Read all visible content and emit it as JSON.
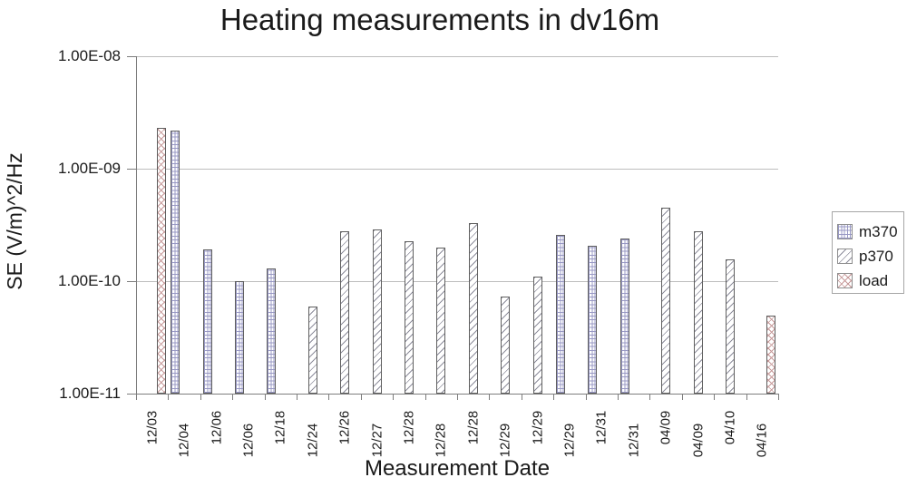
{
  "title": "Heating measurements in dv16m",
  "y_axis": {
    "label": "SE (V/m)^2/Hz",
    "tick_labels": [
      "1.00E-08",
      "1.00E-09",
      "1.00E-10",
      "1.00E-11"
    ]
  },
  "x_axis": {
    "label": "Measurement Date"
  },
  "legend": {
    "position": "right",
    "entries": [
      {
        "name": "m370",
        "pattern": "grid",
        "color": "#9898c4"
      },
      {
        "name": "p370",
        "pattern": "diag",
        "color": "#8e8e9c"
      },
      {
        "name": "load",
        "pattern": "cross",
        "color": "#c79a9a"
      }
    ]
  },
  "colors": {
    "gridline": "#bdbdbd",
    "axis": "#7d7d7d",
    "bar_border": "#5f5f5f",
    "text": "#1a1a1a",
    "m370": "#9898c4",
    "p370": "#8e8e9c",
    "load": "#c79a9a"
  },
  "chart_data": {
    "type": "bar",
    "yscale": "log",
    "title": "Heating measurements in dv16m",
    "xlabel": "Measurement Date",
    "ylabel": "SE (V/m)^2/Hz",
    "ylim": [
      1e-11,
      1e-08
    ],
    "grid": true,
    "legend_position": "right",
    "series_names": [
      "m370",
      "p370",
      "load"
    ],
    "categories": [
      "12/03",
      "12/04",
      "12/06",
      "12/06",
      "12/18",
      "12/24",
      "12/26",
      "12/27",
      "12/28",
      "12/28",
      "12/28",
      "12/29",
      "12/29",
      "12/29",
      "12/31",
      "12/31",
      "04/09",
      "04/09",
      "04/10",
      "04/16"
    ],
    "points": [
      {
        "date": "12/03",
        "series": "load",
        "value": 2.3e-09
      },
      {
        "date": "12/04",
        "series": "m370",
        "value": 2.2e-09
      },
      {
        "date": "12/06",
        "series": "m370",
        "value": 1.9e-10
      },
      {
        "date": "12/06",
        "series": "m370",
        "value": 1e-10
      },
      {
        "date": "12/18",
        "series": "m370",
        "value": 1.3e-10
      },
      {
        "date": "12/24",
        "series": "p370",
        "value": 6e-11
      },
      {
        "date": "12/26",
        "series": "p370",
        "value": 2.8e-10
      },
      {
        "date": "12/27",
        "series": "p370",
        "value": 2.9e-10
      },
      {
        "date": "12/28",
        "series": "p370",
        "value": 2.25e-10
      },
      {
        "date": "12/28",
        "series": "p370",
        "value": 2e-10
      },
      {
        "date": "12/28",
        "series": "p370",
        "value": 3.3e-10
      },
      {
        "date": "12/29",
        "series": "p370",
        "value": 7.3e-11
      },
      {
        "date": "12/29",
        "series": "p370",
        "value": 1.1e-10
      },
      {
        "date": "12/29",
        "series": "m370",
        "value": 2.6e-10
      },
      {
        "date": "12/31",
        "series": "m370",
        "value": 2.05e-10
      },
      {
        "date": "12/31",
        "series": "m370",
        "value": 2.4e-10
      },
      {
        "date": "04/09",
        "series": "p370",
        "value": 4.5e-10
      },
      {
        "date": "04/09",
        "series": "p370",
        "value": 2.8e-10
      },
      {
        "date": "04/10",
        "series": "p370",
        "value": 1.55e-10
      },
      {
        "date": "04/16",
        "series": "load",
        "value": 4.9e-11
      }
    ]
  }
}
